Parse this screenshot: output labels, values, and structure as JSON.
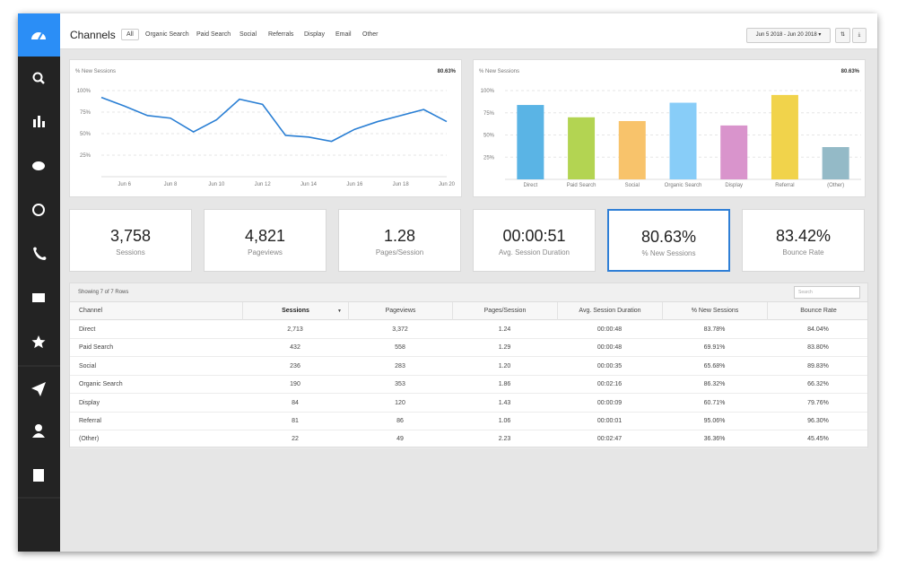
{
  "header": {
    "title": "Channels",
    "tabs": [
      "All",
      "Organic Search",
      "Paid Search",
      "Social",
      "Referrals",
      "Display",
      "Email",
      "Other"
    ],
    "date_range": "Jun 5 2018 - Jun 20 2018"
  },
  "chart_data": [
    {
      "type": "line",
      "title": "% New Sessions",
      "summary": "80.63%",
      "color": "#2a7fd4",
      "categories": [
        null,
        "Jun 6",
        null,
        "Jun 8",
        null,
        "Jun 10",
        null,
        "Jun 12",
        null,
        "Jun 14",
        null,
        "Jun 16",
        null,
        "Jun 18",
        null,
        "Jun 20"
      ],
      "values": [
        92,
        82,
        71,
        68,
        52,
        66,
        90,
        84,
        48,
        46,
        41,
        55,
        64,
        71,
        78,
        64
      ],
      "ylim": [
        0,
        100
      ],
      "yticks": [
        {
          "value": 25,
          "label": "25%"
        },
        {
          "value": 50,
          "label": "50%"
        },
        {
          "value": 75,
          "label": "75%"
        },
        {
          "value": 100,
          "label": "100%"
        }
      ],
      "grid": true
    },
    {
      "type": "bar",
      "title": "% New Sessions",
      "summary": "80.63%",
      "categories": [
        "Direct",
        "Paid Search",
        "Social",
        "Organic Search",
        "Display",
        "Referral",
        "(Other)"
      ],
      "values": [
        83.78,
        69.91,
        65.68,
        86.32,
        60.71,
        95.06,
        36.36
      ],
      "colors": [
        "#5ab4e5",
        "#b3d452",
        "#f8c36b",
        "#88cdf8",
        "#d994cc",
        "#f1d34b",
        "#94bac7"
      ],
      "ylim": [
        0,
        100
      ],
      "yticks": [
        {
          "value": 25,
          "label": "25%"
        },
        {
          "value": 50,
          "label": "50%"
        },
        {
          "value": 75,
          "label": "75%"
        },
        {
          "value": 100,
          "label": "100%"
        }
      ],
      "grid": true
    }
  ],
  "kpis": [
    {
      "value": "3,758",
      "label": "Sessions"
    },
    {
      "value": "4,821",
      "label": "Pageviews"
    },
    {
      "value": "1.28",
      "label": "Pages/Session"
    },
    {
      "value": "00:00:51",
      "label": "Avg. Session Duration"
    },
    {
      "value": "80.63%",
      "label": "% New Sessions"
    },
    {
      "value": "83.42%",
      "label": "Bounce Rate"
    }
  ],
  "table": {
    "caption": "Showing 7 of 7 Rows",
    "search_placeholder": "Search",
    "columns": [
      "Channel",
      "Sessions",
      "Pageviews",
      "Pages/Session",
      "Avg. Session Duration",
      "% New Sessions",
      "Bounce Rate"
    ],
    "rows": [
      [
        "Direct",
        "2,713",
        "3,372",
        "1.24",
        "00:00:48",
        "83.78%",
        "84.04%"
      ],
      [
        "Paid Search",
        "432",
        "558",
        "1.29",
        "00:00:48",
        "69.91%",
        "83.80%"
      ],
      [
        "Social",
        "236",
        "283",
        "1.20",
        "00:00:35",
        "65.68%",
        "89.83%"
      ],
      [
        "Organic Search",
        "190",
        "353",
        "1.86",
        "00:02:16",
        "86.32%",
        "66.32%"
      ],
      [
        "Display",
        "84",
        "120",
        "1.43",
        "00:00:09",
        "60.71%",
        "79.76%"
      ],
      [
        "Referral",
        "81",
        "86",
        "1.06",
        "00:00:01",
        "95.06%",
        "96.30%"
      ],
      [
        "(Other)",
        "22",
        "49",
        "2.23",
        "00:02:47",
        "36.36%",
        "45.45%"
      ]
    ]
  }
}
